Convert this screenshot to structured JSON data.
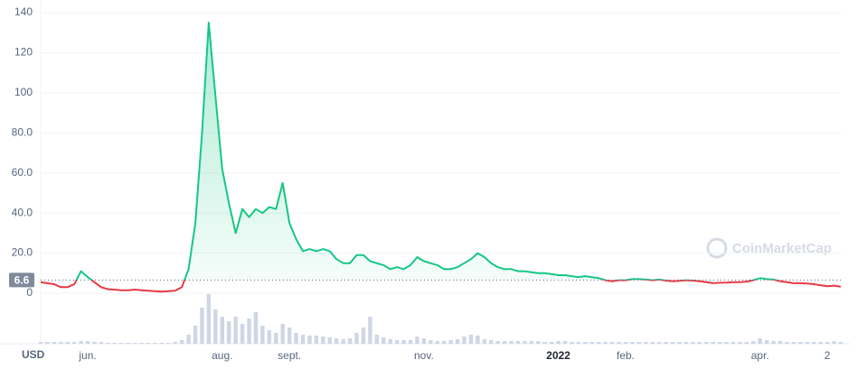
{
  "chart_data": {
    "type": "line",
    "categories": [
      null,
      null,
      null,
      null,
      null,
      null,
      null,
      "jun.",
      null,
      null,
      null,
      null,
      null,
      null,
      null,
      null,
      null,
      null,
      null,
      null,
      null,
      null,
      null,
      null,
      null,
      null,
      null,
      "aug.",
      null,
      null,
      null,
      null,
      null,
      null,
      null,
      null,
      null,
      "sept.",
      null,
      null,
      null,
      null,
      null,
      null,
      null,
      null,
      null,
      null,
      null,
      null,
      null,
      null,
      null,
      null,
      null,
      null,
      null,
      "nov.",
      null,
      null,
      null,
      null,
      null,
      null,
      null,
      null,
      null,
      null,
      null,
      null,
      null,
      null,
      null,
      null,
      null,
      null,
      null,
      "2022",
      null,
      null,
      null,
      null,
      null,
      null,
      null,
      null,
      null,
      "feb.",
      null,
      null,
      null,
      null,
      null,
      null,
      null,
      null,
      null,
      null,
      null,
      null,
      null,
      null,
      null,
      null,
      null,
      null,
      null,
      "apr.",
      null,
      null,
      null,
      null,
      null,
      null,
      null,
      null,
      null,
      "2",
      null,
      null
    ],
    "series": [
      {
        "color": "#16c784",
        "color_below": "#ea3943",
        "values": [
          5.5,
          5,
          4.5,
          3,
          3,
          4.5,
          11,
          8,
          5.5,
          3,
          2,
          1.8,
          1.5,
          1.5,
          1.8,
          1.5,
          1.2,
          1,
          0.8,
          1,
          1.2,
          3,
          12,
          35,
          80,
          135,
          98,
          62,
          45,
          30,
          42,
          38,
          42,
          40,
          43,
          42,
          55,
          35,
          27,
          21,
          22,
          21,
          22,
          21,
          17,
          15,
          15,
          19,
          19,
          16,
          15,
          14,
          12,
          13,
          12,
          14,
          18,
          16,
          15,
          14,
          12,
          12,
          13,
          15,
          17,
          20,
          18,
          15,
          13,
          12,
          12,
          11,
          11,
          10.5,
          10,
          10,
          9.5,
          9,
          9,
          8.5,
          8,
          8.5,
          8,
          7.5,
          6.5,
          6,
          6.5,
          6.5,
          7,
          7,
          6.8,
          6.5,
          6.8,
          6.3,
          6,
          6.2,
          6.5,
          6.3,
          6,
          5.5,
          5,
          5.2,
          5.3,
          5.5,
          5.5,
          5.8,
          6.5,
          7.5,
          7,
          6.8,
          6,
          5.5,
          5,
          5,
          4.8,
          4.5,
          4,
          3.5,
          3.8,
          3.3
        ]
      }
    ],
    "volume": {
      "color": "#cfd6e4",
      "values": [
        2,
        2,
        2,
        2,
        2,
        2,
        3,
        3,
        2,
        2,
        1,
        1,
        1,
        1,
        1,
        1,
        1,
        1,
        1,
        1,
        2,
        4,
        10,
        20,
        40,
        55,
        38,
        30,
        25,
        30,
        22,
        28,
        35,
        20,
        15,
        12,
        22,
        18,
        12,
        10,
        9,
        9,
        8,
        7,
        6,
        5,
        6,
        12,
        18,
        30,
        10,
        7,
        5,
        4,
        4,
        4,
        8,
        6,
        4,
        3,
        3,
        4,
        5,
        8,
        10,
        9,
        5,
        4,
        3,
        3,
        3,
        3,
        3,
        3,
        3,
        2,
        2,
        3,
        3,
        2,
        2,
        2,
        2,
        2,
        2,
        2,
        2,
        2,
        2,
        2,
        2,
        2,
        2,
        2,
        2,
        2,
        2,
        2,
        2,
        2,
        2,
        2,
        2,
        2,
        2,
        2,
        3,
        6,
        4,
        3,
        3,
        2,
        2,
        2,
        2,
        2,
        2,
        2,
        3,
        2
      ]
    },
    "baseline": 6.6,
    "ylim": [
      0,
      140
    ],
    "yticks": [
      0,
      {
        "value": 20,
        "label": "20.0"
      },
      {
        "value": 40,
        "label": "40.0"
      },
      {
        "value": 60,
        "label": "60.0"
      },
      {
        "value": 80,
        "label": "80.0"
      },
      100,
      120,
      140
    ],
    "grid": true,
    "currency": "USD",
    "watermark": "CoinMarketCap"
  }
}
